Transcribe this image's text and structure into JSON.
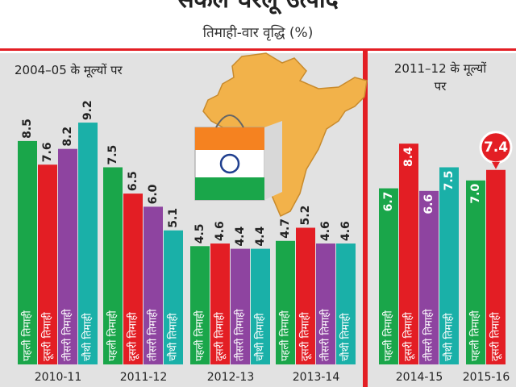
{
  "chart_data": {
    "type": "bar",
    "title": "सकल घरेलू उत्पाद",
    "subtitle": "तिमाही-वार वृद्धि (%)",
    "panels": [
      {
        "label": "2004–05 के मूल्यों पर"
      },
      {
        "label": "2011–12 के मूल्यों पर"
      }
    ],
    "quarter_labels": [
      "पहली तिमाही",
      "दूसरी तिमाही",
      "तीसरी तिमाही",
      "चौथी तिमाही"
    ],
    "colors": [
      "#1aa64a",
      "#e31e24",
      "#8e44a0",
      "#1ab0a8"
    ],
    "groups": [
      {
        "year": "2010-11",
        "panel": 0,
        "values": [
          8.5,
          7.6,
          8.2,
          9.2
        ]
      },
      {
        "year": "2011-12",
        "panel": 0,
        "values": [
          7.5,
          6.5,
          6.0,
          5.1
        ]
      },
      {
        "year": "2012-13",
        "panel": 0,
        "values": [
          4.5,
          4.6,
          4.4,
          4.4
        ]
      },
      {
        "year": "2013-14",
        "panel": 0,
        "values": [
          4.7,
          5.2,
          4.6,
          4.6
        ]
      },
      {
        "year": "2014-15",
        "panel": 1,
        "values": [
          6.7,
          8.4,
          6.6,
          7.5
        ]
      },
      {
        "year": "2015-16",
        "panel": 1,
        "values": [
          7.0,
          7.4
        ],
        "highlight_index": 1
      }
    ]
  }
}
